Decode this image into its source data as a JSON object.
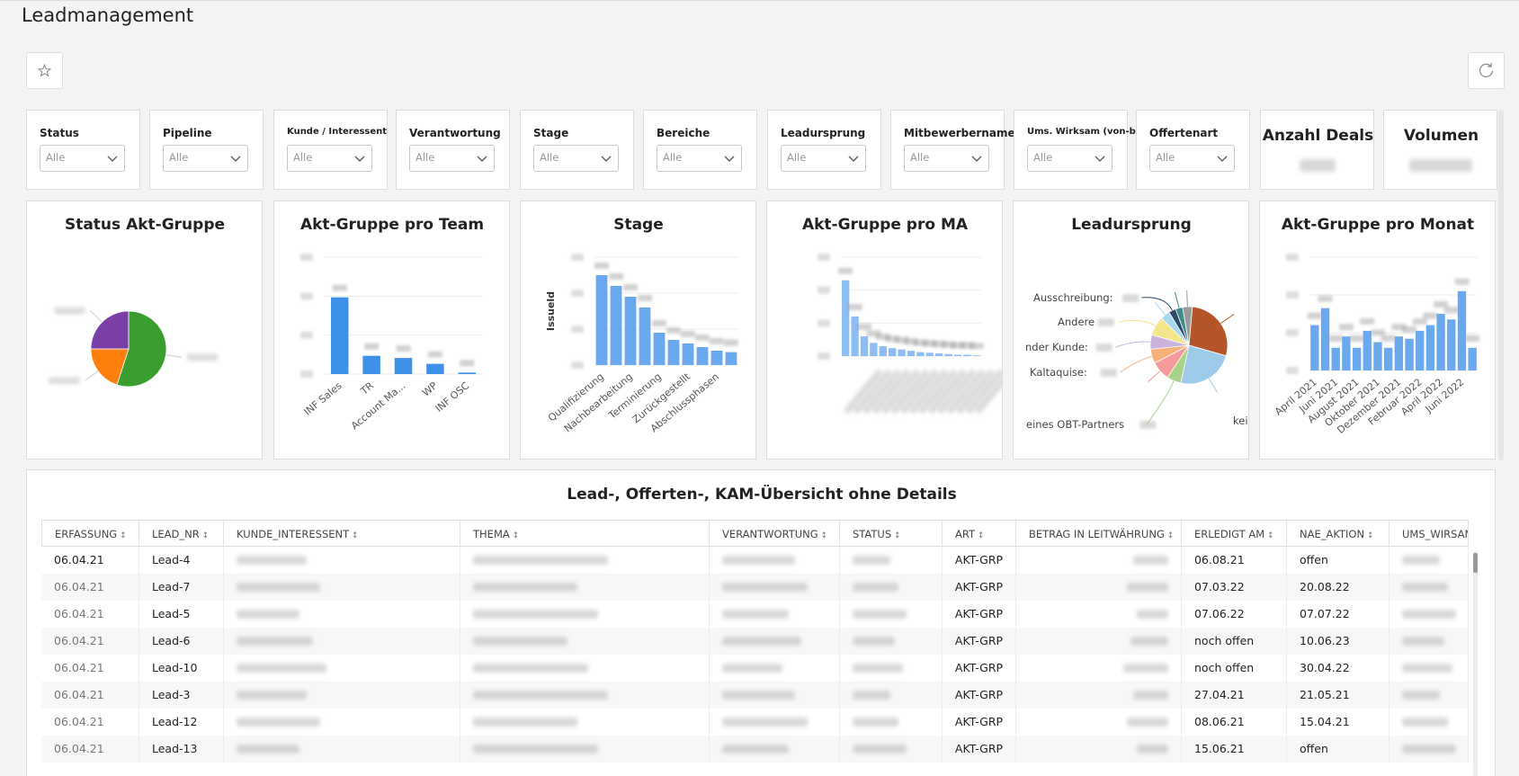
{
  "header": {
    "title": "Leadmanagement"
  },
  "filters": [
    {
      "label": "Status",
      "value": "Alle"
    },
    {
      "label": "Pipeline",
      "value": "Alle"
    },
    {
      "label": "Kunde / Interessent",
      "value": "Alle"
    },
    {
      "label": "Verantwortung",
      "value": "Alle"
    },
    {
      "label": "Stage",
      "value": "Alle"
    },
    {
      "label": "Bereiche",
      "value": "Alle"
    },
    {
      "label": "Leadursprung",
      "value": "Alle"
    },
    {
      "label": "Mitbewerbername",
      "value": "Alle"
    },
    {
      "label": "Ums. Wirksam (von-bis)",
      "value": "Alle"
    },
    {
      "label": "Offertenart",
      "value": "Alle"
    }
  ],
  "kpis": [
    {
      "label": "Anzahl Deals"
    },
    {
      "label": "Volumen"
    }
  ],
  "charts": [
    {
      "type": "pie",
      "title": "Status Akt-Gruppe",
      "values": [
        55,
        20,
        25
      ],
      "colors": [
        "#3a9e2f",
        "#ff7f0e",
        "#7b3fa8"
      ]
    },
    {
      "type": "bar",
      "title": "Akt-Gruppe pro Team",
      "categories": [
        "INF Sales",
        "TR",
        "Account Ma...",
        "WP",
        "INF OSC"
      ],
      "values": [
        105,
        25,
        22,
        14,
        2
      ],
      "ylim": [
        0,
        160
      ],
      "color": "#3d8fe8"
    },
    {
      "type": "bar",
      "title": "Stage",
      "y_label": "Issueld",
      "categories": [
        "Qualifizierung",
        null,
        "Nachbearbeitung",
        null,
        "Terminierung",
        null,
        "Zurückgestellt",
        null,
        "Abschlussphasen",
        null
      ],
      "values": [
        125,
        110,
        95,
        80,
        45,
        35,
        30,
        25,
        20,
        18
      ],
      "ylim": [
        0,
        150
      ],
      "color": "#6aa9ee"
    },
    {
      "type": "bar",
      "title": "Akt-Gruppe pro MA",
      "values": [
        115,
        60,
        30,
        20,
        15,
        12,
        10,
        8,
        6,
        5,
        4,
        3,
        2,
        2,
        1
      ],
      "ylim": [
        0,
        150
      ],
      "color": "#8dbdf2"
    },
    {
      "type": "pie",
      "title": "Leadursprung",
      "values": [
        28,
        24,
        6,
        8,
        6,
        6,
        8,
        4,
        3,
        3,
        4
      ],
      "labels": [
        null,
        "kein",
        "eines OBT-Partners",
        null,
        "Kaltaquise:",
        "nder Kunde:",
        "Andere",
        null,
        "Ausschreibung:",
        null,
        null
      ],
      "colors": [
        "#b5562a",
        "#9ecbea",
        "#a8d48a",
        "#f59a9a",
        "#f7b27a",
        "#c9b3dd",
        "#f5e58a",
        "#a6d8f0",
        "#2b4a6b",
        "#3f8a8a",
        "#9a9a9a"
      ]
    },
    {
      "type": "bar",
      "title": "Akt-Gruppe pro Monat",
      "categories": [
        "April 2021",
        null,
        "Juni 2021",
        null,
        "August 2021",
        null,
        "Oktober 2021",
        null,
        "Dezember 2021",
        null,
        "Februar 2022",
        null,
        "April 2022",
        null,
        "Juni 2022",
        null
      ],
      "values": [
        40,
        55,
        20,
        30,
        20,
        35,
        25,
        20,
        30,
        28,
        35,
        40,
        50,
        45,
        70,
        20
      ],
      "ylim": [
        0,
        100
      ],
      "color": "#6aa9ee"
    }
  ],
  "table": {
    "title": "Lead-, Offerten-, KAM-Übersicht ohne Details",
    "columns": [
      "ERFASSUNG",
      "LEAD_NR",
      "KUNDE_INTERESSENT",
      "THEMA",
      "VERANTWORTUNG",
      "STATUS",
      "ART",
      "BETRAG IN LEITWÄHRUNG",
      "ERLEDIGT AM",
      "NAE_AKTION",
      "UMS_WIRSAM"
    ],
    "rows": [
      [
        "06.04.21",
        "Lead-4",
        null,
        null,
        null,
        null,
        "AKT-GRP",
        null,
        "06.08.21",
        "offen",
        null
      ],
      [
        "06.04.21",
        "Lead-7",
        null,
        null,
        null,
        null,
        "AKT-GRP",
        null,
        "07.03.22",
        "20.08.22",
        null
      ],
      [
        "06.04.21",
        "Lead-5",
        null,
        null,
        null,
        null,
        "AKT-GRP",
        null,
        "07.06.22",
        "07.07.22",
        null
      ],
      [
        "06.04.21",
        "Lead-6",
        null,
        null,
        null,
        null,
        "AKT-GRP",
        null,
        "noch offen",
        "10.06.23",
        null
      ],
      [
        "06.04.21",
        "Lead-10",
        null,
        null,
        null,
        null,
        "AKT-GRP",
        null,
        "noch offen",
        "30.04.22",
        null
      ],
      [
        "06.04.21",
        "Lead-3",
        null,
        null,
        null,
        null,
        "AKT-GRP",
        null,
        "27.04.21",
        "21.05.21",
        null
      ],
      [
        "06.04.21",
        "Lead-12",
        null,
        null,
        null,
        null,
        "AKT-GRP",
        null,
        "08.06.21",
        "15.04.21",
        null
      ],
      [
        "06.04.21",
        "Lead-13",
        null,
        null,
        null,
        null,
        "AKT-GRP",
        null,
        "15.06.21",
        "offen",
        null
      ]
    ]
  }
}
